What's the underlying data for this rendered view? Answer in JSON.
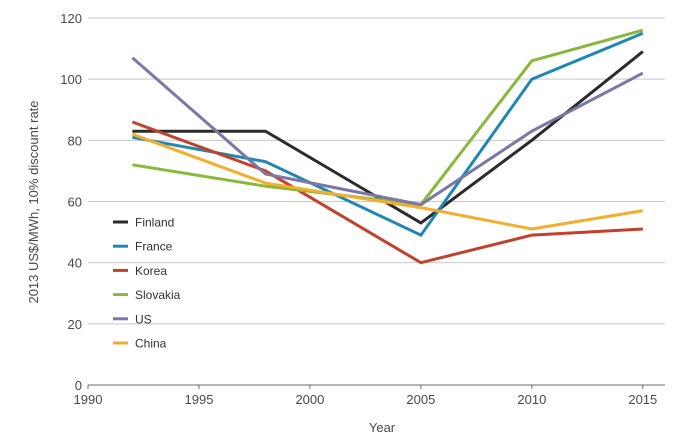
{
  "chart_data": {
    "type": "line",
    "xlabel": "Year",
    "ylabel": "2013 US$/MWh, 10% discount rate",
    "xlim": [
      1990,
      2016
    ],
    "ylim": [
      0,
      120
    ],
    "xticks": [
      1990,
      1995,
      2000,
      2005,
      2010,
      2015
    ],
    "yticks": [
      0,
      20,
      40,
      60,
      80,
      100,
      120
    ],
    "x_tick_labels": [
      "1990",
      "1995",
      "2000",
      "2005",
      "2010",
      "2015"
    ],
    "y_tick_labels": [
      "0",
      "20",
      "40",
      "60",
      "80",
      "100",
      "120"
    ],
    "grid": "horizontal",
    "legend_position": "left-middle",
    "series": [
      {
        "name": "Finland",
        "color": "#2b2b2b",
        "x": [
          1992,
          1998,
          2005,
          2010,
          2015
        ],
        "y": [
          83,
          83,
          53,
          80,
          109
        ]
      },
      {
        "name": "France",
        "color": "#1f87b5",
        "x": [
          1992,
          1998,
          2005,
          2010,
          2015
        ],
        "y": [
          81,
          73,
          49,
          100,
          115
        ]
      },
      {
        "name": "Korea",
        "color": "#c2412b",
        "x": [
          1992,
          1998,
          2005,
          2010,
          2015
        ],
        "y": [
          86,
          70,
          40,
          49,
          51
        ]
      },
      {
        "name": "Slovakia",
        "color": "#8ab83a",
        "x": [
          1992,
          1998,
          2005,
          2010,
          2015
        ],
        "y": [
          72,
          65,
          59,
          106,
          116
        ]
      },
      {
        "name": "US",
        "color": "#7a78a6",
        "x": [
          1992,
          1998,
          2005,
          2010,
          2015
        ],
        "y": [
          107,
          69,
          59,
          83,
          102
        ]
      },
      {
        "name": "China",
        "color": "#f2ae2c",
        "x": [
          1992,
          1998,
          2005,
          2010,
          2015
        ],
        "y": [
          82,
          66,
          58,
          51,
          57
        ]
      }
    ]
  }
}
